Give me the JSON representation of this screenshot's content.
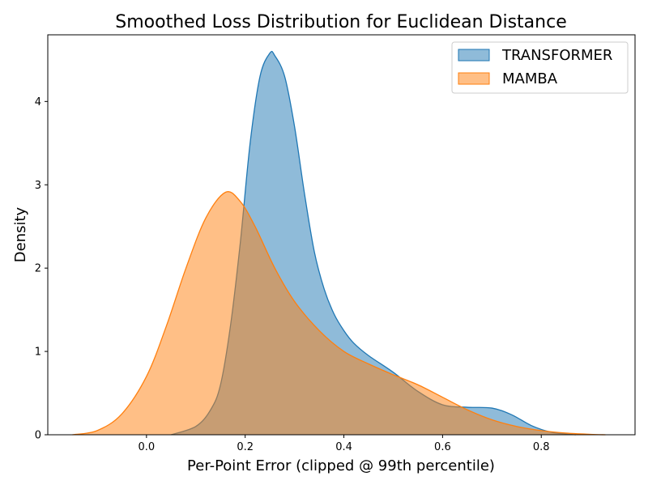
{
  "chart_data": {
    "type": "area",
    "title": "Smoothed Loss Distribution for Euclidean Distance",
    "xlabel": "Per-Point Error (clipped @ 99th percentile)",
    "ylabel": "Density",
    "xlim": [
      -0.2,
      0.99
    ],
    "ylim": [
      0,
      4.8
    ],
    "xticks": [
      0.0,
      0.2,
      0.4,
      0.6,
      0.8
    ],
    "xtick_labels": [
      "0.0",
      "0.2",
      "0.4",
      "0.6",
      "0.8"
    ],
    "yticks": [
      0,
      1,
      2,
      3,
      4
    ],
    "ytick_labels": [
      "0",
      "1",
      "2",
      "3",
      "4"
    ],
    "grid": false,
    "legend_position": "top-right",
    "series": [
      {
        "name": "TRANSFORMER",
        "color": "#1f77b4",
        "x": [
          0.05,
          0.1,
          0.13,
          0.15,
          0.17,
          0.19,
          0.21,
          0.23,
          0.25,
          0.26,
          0.28,
          0.3,
          0.32,
          0.34,
          0.36,
          0.38,
          0.4,
          0.42,
          0.45,
          0.5,
          0.55,
          0.6,
          0.65,
          0.7,
          0.74,
          0.78,
          0.82,
          0.85,
          0.87
        ],
        "y": [
          0.0,
          0.1,
          0.3,
          0.6,
          1.3,
          2.3,
          3.5,
          4.3,
          4.58,
          4.55,
          4.3,
          3.7,
          2.9,
          2.2,
          1.75,
          1.45,
          1.25,
          1.1,
          0.95,
          0.75,
          0.52,
          0.36,
          0.33,
          0.32,
          0.24,
          0.11,
          0.03,
          0.01,
          0.0
        ]
      },
      {
        "name": "MAMBA",
        "color": "#ff7f0e",
        "x": [
          -0.15,
          -0.1,
          -0.05,
          0.0,
          0.04,
          0.08,
          0.12,
          0.16,
          0.19,
          0.22,
          0.26,
          0.3,
          0.35,
          0.4,
          0.45,
          0.5,
          0.55,
          0.6,
          0.65,
          0.7,
          0.75,
          0.8,
          0.85,
          0.9,
          0.93
        ],
        "y": [
          0.0,
          0.05,
          0.25,
          0.7,
          1.3,
          2.0,
          2.6,
          2.91,
          2.8,
          2.5,
          2.0,
          1.6,
          1.25,
          1.0,
          0.85,
          0.72,
          0.6,
          0.45,
          0.3,
          0.18,
          0.1,
          0.05,
          0.02,
          0.005,
          0.0
        ]
      }
    ]
  }
}
